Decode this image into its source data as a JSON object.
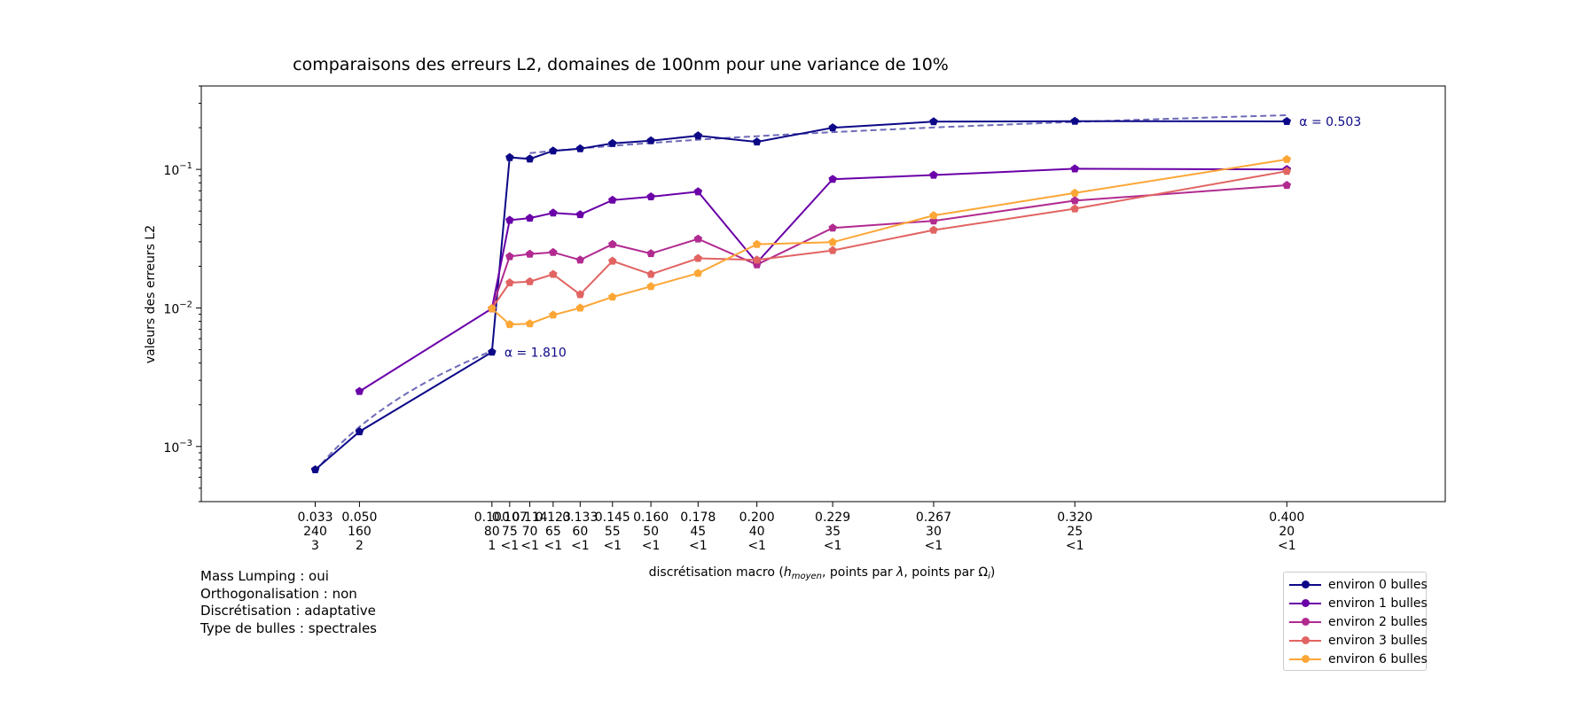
{
  "chart_data": {
    "type": "line",
    "title": "comparaisons des erreurs L2, domaines de 100nm pour une variance de 10%",
    "xlabel": "discrétisation macro (h_moyen, points par λ, points par Ω_i)",
    "xlabel_parts": {
      "prefix": "discrétisation macro (",
      "h": "h",
      "h_sub": "moyen",
      "mid1": ", points par ",
      "lambda": "λ",
      "mid2": ", points par ",
      "omega": "Ω",
      "omega_sub": "i",
      "suffix": ")"
    },
    "ylabel": "valeurs des erreurs L2",
    "yscale": "log",
    "ylim": [
      0.0004,
      0.4
    ],
    "xlim": [
      -0.0097,
      0.4598
    ],
    "yticks": [
      {
        "value": 0.1,
        "base": "10",
        "exp": "−1"
      },
      {
        "value": 0.01,
        "base": "10",
        "exp": "−2"
      },
      {
        "value": 0.001,
        "base": "10",
        "exp": "−3"
      }
    ],
    "xticks": [
      {
        "x": 0.0333,
        "l1": "0.033",
        "l2": "240",
        "l3": "3"
      },
      {
        "x": 0.05,
        "l1": "0.050",
        "l2": "160",
        "l3": "2"
      },
      {
        "x": 0.1,
        "l1": "0.100",
        "l2": "80",
        "l3": "1"
      },
      {
        "x": 0.1067,
        "l1": "0.107",
        "l2": "75",
        "l3": "<1"
      },
      {
        "x": 0.1143,
        "l1": "0.114",
        "l2": "70",
        "l3": "<1"
      },
      {
        "x": 0.1231,
        "l1": "0.123",
        "l2": "65",
        "l3": "<1"
      },
      {
        "x": 0.1333,
        "l1": "0.133",
        "l2": "60",
        "l3": "<1"
      },
      {
        "x": 0.1455,
        "l1": "0.145",
        "l2": "55",
        "l3": "<1"
      },
      {
        "x": 0.16,
        "l1": "0.160",
        "l2": "50",
        "l3": "<1"
      },
      {
        "x": 0.1778,
        "l1": "0.178",
        "l2": "45",
        "l3": "<1"
      },
      {
        "x": 0.2,
        "l1": "0.200",
        "l2": "40",
        "l3": "<1"
      },
      {
        "x": 0.2286,
        "l1": "0.229",
        "l2": "35",
        "l3": "<1"
      },
      {
        "x": 0.2667,
        "l1": "0.267",
        "l2": "30",
        "l3": "<1"
      },
      {
        "x": 0.32,
        "l1": "0.320",
        "l2": "25",
        "l3": "<1"
      },
      {
        "x": 0.4,
        "l1": "0.400",
        "l2": "20",
        "l3": "<1"
      }
    ],
    "x": [
      0.0333,
      0.05,
      0.1,
      0.1067,
      0.1143,
      0.1231,
      0.1333,
      0.1455,
      0.16,
      0.1778,
      0.2,
      0.2286,
      0.2667,
      0.32,
      0.4
    ],
    "series": [
      {
        "name": "environ 0 bulles",
        "color": "#0d0887",
        "values": [
          0.00068,
          0.00128,
          0.0048,
          0.122,
          0.119,
          0.136,
          0.141,
          0.154,
          0.161,
          0.175,
          0.158,
          0.2,
          0.221,
          0.223,
          0.222
        ]
      },
      {
        "name": "environ 1 bulles",
        "color": "#6a00a8",
        "values": [
          null,
          0.0025,
          0.0099,
          0.043,
          0.0445,
          0.0485,
          0.0472,
          0.06,
          0.0635,
          0.069,
          0.0212,
          0.085,
          0.091,
          0.101,
          0.1
        ]
      },
      {
        "name": "environ 2 bulles",
        "color": "#b12a90",
        "values": [
          null,
          null,
          0.0099,
          0.0235,
          0.0245,
          0.0252,
          0.0222,
          0.0288,
          0.0247,
          0.0315,
          0.0205,
          0.0378,
          0.0425,
          0.0595,
          0.0768
        ]
      },
      {
        "name": "environ 3 bulles",
        "color": "#e16462",
        "values": [
          null,
          null,
          0.0099,
          0.0152,
          0.0155,
          0.0175,
          0.0125,
          0.0218,
          0.0175,
          0.0228,
          0.0222,
          0.026,
          0.0365,
          0.052,
          0.097
        ]
      },
      {
        "name": "environ 6 bulles",
        "color": "#fca636",
        "values": [
          null,
          null,
          0.0099,
          0.0076,
          0.0077,
          0.0089,
          0.01,
          0.012,
          0.0143,
          0.0178,
          0.0288,
          0.0298,
          0.0465,
          0.0675,
          0.118
        ]
      }
    ],
    "fits": [
      {
        "label": "α = 1.810",
        "color": "#0d0887",
        "x_range": [
          0.0333,
          0.1
        ],
        "y_range": [
          0.00066,
          0.0049
        ],
        "label_at_series_point": 2
      },
      {
        "label": "α = 0.503",
        "color": "#0d0887",
        "x_range": [
          0.1143,
          0.4
        ],
        "y_range": [
          0.131,
          0.246
        ],
        "label_at_series_point": 14
      }
    ],
    "legend_position": "lower right, below axes",
    "grid": false
  },
  "notes": [
    "Mass Lumping : oui",
    "Orthogonalisation : non",
    "Discrétisation : adaptative",
    "Type de bulles : spectrales"
  ]
}
